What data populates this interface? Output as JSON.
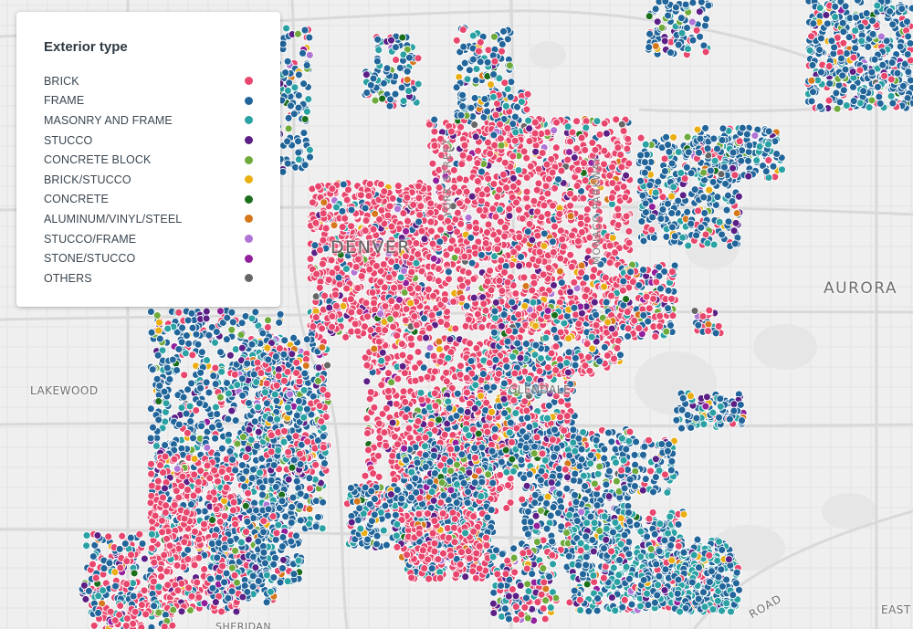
{
  "legend": {
    "title": "Exterior type",
    "items": [
      {
        "label": "BRICK",
        "color": "#e8466d"
      },
      {
        "label": "FRAME",
        "color": "#21659a"
      },
      {
        "label": "MASONRY AND FRAME",
        "color": "#2aa1a3"
      },
      {
        "label": "STUCCO",
        "color": "#5b1f86"
      },
      {
        "label": "CONCRETE BLOCK",
        "color": "#6eab3c"
      },
      {
        "label": "BRICK/STUCCO",
        "color": "#eaae12"
      },
      {
        "label": "CONCRETE",
        "color": "#1b6e1b"
      },
      {
        "label": "ALUMINUM/VINYL/STEEL",
        "color": "#d6771b"
      },
      {
        "label": "STUCCO/FRAME",
        "color": "#b074d4"
      },
      {
        "label": "STONE/STUCCO",
        "color": "#921f9c"
      },
      {
        "label": "OTHERS",
        "color": "#666666"
      }
    ]
  },
  "places": {
    "denver": "DENVER",
    "aurora": "AURORA",
    "lakewood": "LAKEWOOD",
    "glendale": "GLENDALE",
    "sheridan": "SHERIDAN",
    "east": "EAST",
    "road": "ROAD"
  },
  "streets": {
    "york": "YORK STREET",
    "monaco": "MONACO PARKWAY"
  }
}
